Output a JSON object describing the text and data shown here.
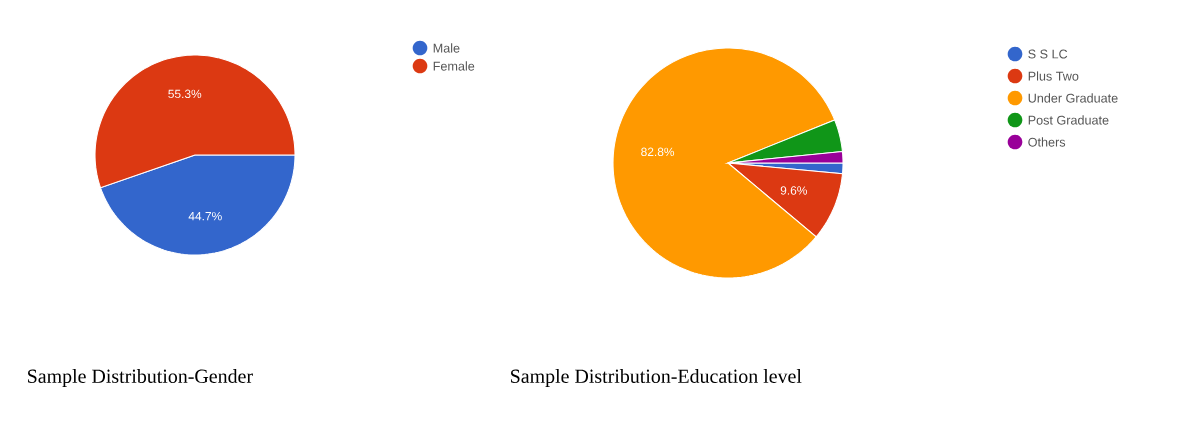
{
  "chart_data": [
    {
      "type": "pie",
      "title": "Sample Distribution-Gender",
      "categories": [
        "Male",
        "Female"
      ],
      "values": [
        44.7,
        55.3
      ],
      "colors": [
        "#3366cc",
        "#dc3912"
      ],
      "value_labels": [
        "44.7%",
        "55.3%"
      ],
      "legend": "top right"
    },
    {
      "type": "pie",
      "title": "Sample Distribution-Education level",
      "categories": [
        "S S LC",
        "Plus Two",
        "Under Graduate",
        "Post Graduate",
        "Others"
      ],
      "values": [
        1.5,
        9.6,
        82.8,
        4.5,
        1.6
      ],
      "colors": [
        "#3366cc",
        "#dc3912",
        "#ff9900",
        "#109618",
        "#990099"
      ],
      "value_labels": [
        null,
        "9.6%",
        "82.8%",
        null,
        null
      ],
      "legend": "top right"
    }
  ]
}
